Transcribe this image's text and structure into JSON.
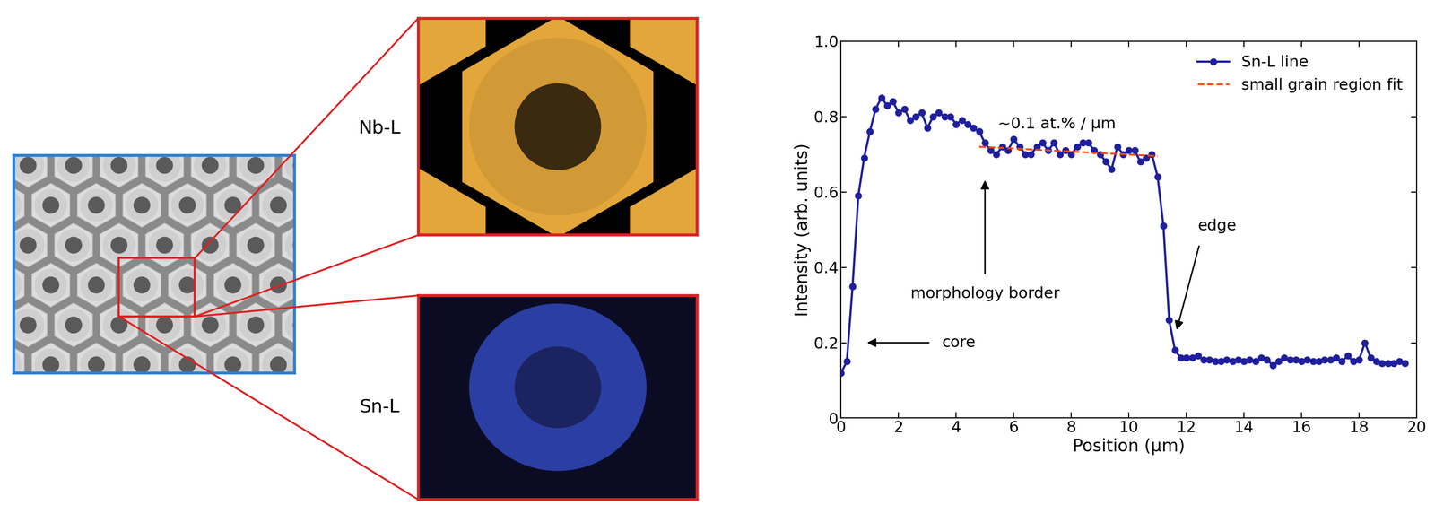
{
  "chart_data": {
    "type": "line",
    "x_label": "Position (µm)",
    "y_label": "Intensity (arb. units)",
    "series": [
      {
        "name": "Sn-L line",
        "color": "#1f1f9e",
        "marker": "o",
        "line_style": "solid",
        "x": [
          0,
          0.2,
          0.4,
          0.6,
          0.8,
          1.0,
          1.2,
          1.4,
          1.6,
          1.8,
          2.0,
          2.2,
          2.4,
          2.6,
          2.8,
          3.0,
          3.2,
          3.4,
          3.6,
          3.8,
          4.0,
          4.2,
          4.4,
          4.6,
          4.8,
          5.0,
          5.2,
          5.4,
          5.6,
          5.8,
          6.0,
          6.2,
          6.4,
          6.6,
          6.8,
          7.0,
          7.2,
          7.4,
          7.6,
          7.8,
          8.0,
          8.2,
          8.4,
          8.6,
          8.8,
          9.0,
          9.2,
          9.4,
          9.6,
          9.8,
          10.0,
          10.2,
          10.4,
          10.6,
          10.8,
          11.0,
          11.2,
          11.4,
          11.6,
          11.8,
          12.0,
          12.2,
          12.4,
          12.6,
          12.8,
          13.0,
          13.2,
          13.4,
          13.6,
          13.8,
          14.0,
          14.2,
          14.4,
          14.6,
          14.8,
          15.0,
          15.2,
          15.4,
          15.6,
          15.8,
          16.0,
          16.2,
          16.4,
          16.6,
          16.8,
          17.0,
          17.2,
          17.4,
          17.6,
          17.8,
          18.0,
          18.2,
          18.4,
          18.6,
          18.8,
          19.0,
          19.2,
          19.4,
          19.6
        ],
        "values": [
          0.12,
          0.15,
          0.35,
          0.59,
          0.69,
          0.76,
          0.82,
          0.85,
          0.83,
          0.84,
          0.81,
          0.82,
          0.79,
          0.8,
          0.81,
          0.77,
          0.8,
          0.81,
          0.8,
          0.8,
          0.78,
          0.79,
          0.78,
          0.77,
          0.76,
          0.73,
          0.71,
          0.7,
          0.72,
          0.71,
          0.74,
          0.72,
          0.7,
          0.7,
          0.72,
          0.73,
          0.71,
          0.73,
          0.7,
          0.71,
          0.7,
          0.72,
          0.73,
          0.73,
          0.71,
          0.7,
          0.68,
          0.66,
          0.72,
          0.7,
          0.71,
          0.71,
          0.68,
          0.69,
          0.7,
          0.64,
          0.51,
          0.26,
          0.18,
          0.16,
          0.16,
          0.16,
          0.165,
          0.155,
          0.155,
          0.15,
          0.15,
          0.155,
          0.15,
          0.155,
          0.15,
          0.155,
          0.15,
          0.16,
          0.155,
          0.14,
          0.15,
          0.16,
          0.155,
          0.155,
          0.15,
          0.155,
          0.15,
          0.15,
          0.155,
          0.155,
          0.16,
          0.15,
          0.165,
          0.15,
          0.155,
          0.2,
          0.16,
          0.15,
          0.145,
          0.145,
          0.145,
          0.15,
          0.145
        ]
      },
      {
        "name": "small grain region fit",
        "color": "#ff4500",
        "line_style": "dashed",
        "x": [
          4.8,
          11.0
        ],
        "values": [
          0.72,
          0.695
        ]
      }
    ],
    "xlim": [
      0,
      20
    ],
    "xticks": [
      0,
      2,
      4,
      6,
      8,
      10,
      12,
      14,
      16,
      18,
      20
    ],
    "ylim": [
      0,
      1.0
    ],
    "yticks": [
      0,
      0.2,
      0.4,
      0.6,
      0.8,
      1.0
    ],
    "grid": false,
    "legend": "upper right",
    "annotations": {
      "slope": "~0.1 at.% / µm",
      "border": "morphology border",
      "core": "core",
      "edge": "edge"
    }
  },
  "micrographs": {
    "labels": [
      "Nb-L",
      "Sn-L"
    ]
  }
}
